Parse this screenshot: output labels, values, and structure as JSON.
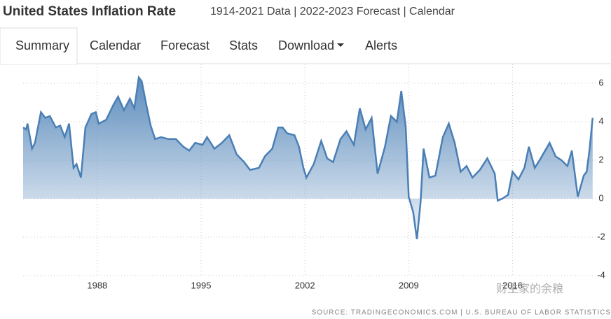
{
  "header": {
    "title": "United States Inflation Rate",
    "subtitle": "1914-2021 Data | 2022-2023 Forecast | Calendar"
  },
  "tabs": [
    "Summary",
    "Calendar",
    "Forecast",
    "Stats",
    "Download",
    "Alerts"
  ],
  "source": "SOURCE: TRADINGECONOMICS.COM | U.S. BUREAU OF LABOR STATISTICS",
  "watermark": "财主家的余粮",
  "chart_data": {
    "type": "area",
    "color": "#4a7fb5",
    "grid": true,
    "x": [
      1983.0,
      1983.2,
      1983.3,
      1983.6,
      1983.8,
      1984.2,
      1984.5,
      1984.8,
      1985.2,
      1985.5,
      1985.8,
      1986.1,
      1986.4,
      1986.6,
      1986.9,
      1987.2,
      1987.6,
      1987.9,
      1988.1,
      1988.6,
      1989.1,
      1989.4,
      1989.8,
      1990.2,
      1990.5,
      1990.8,
      1991.0,
      1991.3,
      1991.6,
      1991.9,
      1992.3,
      1992.8,
      1993.3,
      1993.8,
      1994.2,
      1994.6,
      1995.1,
      1995.4,
      1995.9,
      1996.4,
      1996.9,
      1997.4,
      1997.9,
      1998.3,
      1998.9,
      1999.3,
      1999.8,
      2000.2,
      2000.5,
      2000.8,
      2001.3,
      2001.6,
      2001.9,
      2002.1,
      2002.6,
      2003.1,
      2003.5,
      2003.9,
      2004.4,
      2004.8,
      2005.3,
      2005.7,
      2006.1,
      2006.5,
      2006.9,
      2007.4,
      2007.8,
      2008.2,
      2008.5,
      2008.8,
      2009.0,
      2009.3,
      2009.55,
      2009.8,
      2010.0,
      2010.4,
      2010.8,
      2011.3,
      2011.7,
      2012.1,
      2012.5,
      2012.9,
      2013.3,
      2013.8,
      2014.3,
      2014.8,
      2015.0,
      2015.3,
      2015.7,
      2016.0,
      2016.4,
      2016.8,
      2017.1,
      2017.5,
      2017.9,
      2018.5,
      2018.9,
      2019.3,
      2019.7,
      2020.0,
      2020.4,
      2020.8,
      2021.0,
      2021.2,
      2021.4
    ],
    "values": [
      3.7,
      3.6,
      3.9,
      2.6,
      2.9,
      4.5,
      4.2,
      4.3,
      3.7,
      3.8,
      3.2,
      3.9,
      1.6,
      1.8,
      1.1,
      3.7,
      4.4,
      4.5,
      3.9,
      4.1,
      4.9,
      5.3,
      4.6,
      5.2,
      4.7,
      6.3,
      6.1,
      4.9,
      3.8,
      3.1,
      3.2,
      3.1,
      3.1,
      2.7,
      2.5,
      2.9,
      2.8,
      3.2,
      2.6,
      2.9,
      3.3,
      2.3,
      1.9,
      1.5,
      1.6,
      2.2,
      2.6,
      3.7,
      3.7,
      3.4,
      3.3,
      2.7,
      1.6,
      1.1,
      1.8,
      3.0,
      2.1,
      1.9,
      3.1,
      3.5,
      2.8,
      4.7,
      3.6,
      4.2,
      1.3,
      2.7,
      4.3,
      4.0,
      5.6,
      3.7,
      0.1,
      -0.7,
      -2.1,
      -0.2,
      2.6,
      1.1,
      1.2,
      3.2,
      3.9,
      2.9,
      1.4,
      1.7,
      1.1,
      1.5,
      2.1,
      1.3,
      -0.1,
      0.0,
      0.2,
      1.4,
      1.0,
      1.6,
      2.7,
      1.6,
      2.1,
      2.9,
      2.2,
      2.0,
      1.7,
      2.5,
      0.1,
      1.2,
      1.4,
      2.6,
      4.2
    ],
    "xlim": [
      1983.0,
      2021.6
    ],
    "ylim": [
      -4,
      6.6
    ],
    "xticks": [
      1988,
      1995,
      2002,
      2009,
      2016
    ],
    "yticks": [
      6,
      4,
      2,
      0,
      -2,
      -4
    ]
  }
}
